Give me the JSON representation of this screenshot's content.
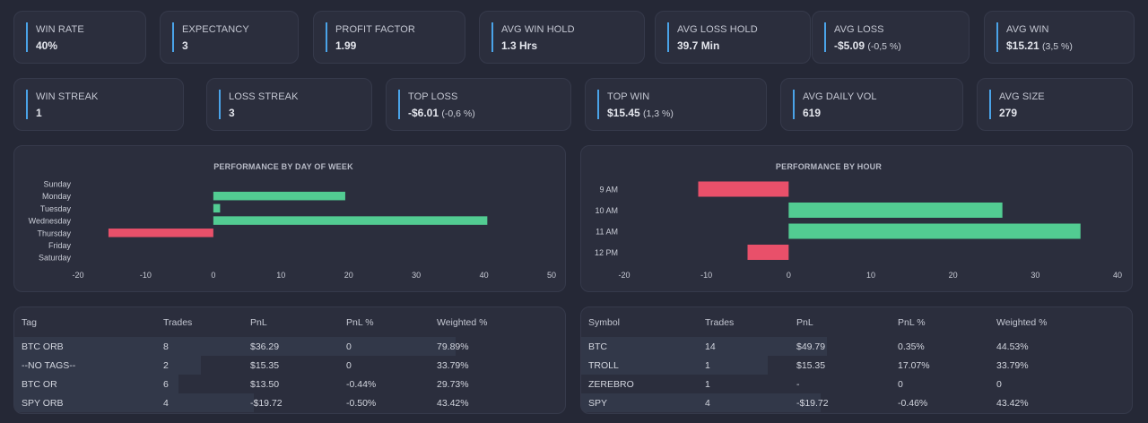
{
  "stats_row1": [
    {
      "label": "WIN RATE",
      "value": "40%",
      "sub": ""
    },
    {
      "label": "EXPECTANCY",
      "value": "3",
      "sub": ""
    },
    {
      "label": "PROFIT FACTOR",
      "value": "1.99",
      "sub": ""
    },
    {
      "label": "AVG WIN HOLD",
      "value": "1.3 Hrs",
      "sub": ""
    },
    {
      "label": "AVG LOSS HOLD",
      "value": "39.7 Min",
      "sub": ""
    },
    {
      "label": "AVG LOSS",
      "value": "-$5.09",
      "sub": "(-0,5 %)"
    },
    {
      "label": "AVG WIN",
      "value": "$15.21",
      "sub": "(3,5 %)"
    }
  ],
  "stats_row2": [
    {
      "label": "WIN STREAK",
      "value": "1",
      "sub": ""
    },
    {
      "label": "LOSS STREAK",
      "value": "3",
      "sub": ""
    },
    {
      "label": "TOP LOSS",
      "value": "-$6.01",
      "sub": "(-0,6 %)"
    },
    {
      "label": "TOP WIN",
      "value": "$15.45",
      "sub": "(1,3 %)"
    },
    {
      "label": "AVG DAILY VOL",
      "value": "619",
      "sub": ""
    },
    {
      "label": "AVG SIZE",
      "value": "279",
      "sub": ""
    }
  ],
  "colors": {
    "positive": "#52cc92",
    "negative": "#e9506a",
    "accent": "#4aa3e8"
  },
  "chart_data": [
    {
      "type": "bar",
      "orientation": "horizontal",
      "title": "PERFORMANCE BY DAY OF WEEK",
      "categories": [
        "Sunday",
        "Monday",
        "Tuesday",
        "Wednesday",
        "Thursday",
        "Friday",
        "Saturday"
      ],
      "values": [
        0,
        19.5,
        1,
        40.5,
        -15.5,
        0,
        0
      ],
      "xlim": [
        -20,
        50
      ],
      "xticks": [
        -20,
        -10,
        0,
        10,
        20,
        30,
        40,
        50
      ],
      "xtick_labels": [
        "-20",
        "-10",
        "0",
        "10",
        "20",
        "30",
        "40",
        "50"
      ],
      "grid": false
    },
    {
      "type": "bar",
      "orientation": "horizontal",
      "title": "PERFORMANCE BY HOUR",
      "categories": [
        "9 AM",
        "10 AM",
        "11 AM",
        "12 PM"
      ],
      "values": [
        -11,
        26,
        35.5,
        -5
      ],
      "xlim": [
        -20,
        40
      ],
      "xticks": [
        -20,
        -10,
        0,
        10,
        20,
        30,
        40
      ],
      "xtick_labels": [
        "-20",
        "-10",
        "0",
        "10",
        "20",
        "30",
        "40"
      ],
      "grid": false
    }
  ],
  "tag_table": {
    "headers": [
      "Tag",
      "Trades",
      "PnL",
      "PnL %",
      "Weighted %"
    ],
    "rows": [
      {
        "cells": [
          "BTC ORB",
          "8",
          "$36.29",
          "0",
          "79.89%"
        ],
        "weight": 79.89
      },
      {
        "cells": [
          "--NO TAGS--",
          "2",
          "$15.35",
          "0",
          "33.79%"
        ],
        "weight": 33.79
      },
      {
        "cells": [
          "BTC OR",
          "6",
          "$13.50",
          "-0.44%",
          "29.73%"
        ],
        "weight": 29.73
      },
      {
        "cells": [
          "SPY ORB",
          "4",
          "-$19.72",
          "-0.50%",
          "43.42%"
        ],
        "weight": 43.42
      }
    ]
  },
  "symbol_table": {
    "headers": [
      "Symbol",
      "Trades",
      "PnL",
      "PnL %",
      "Weighted %"
    ],
    "rows": [
      {
        "cells": [
          "BTC",
          "14",
          "$49.79",
          "0.35%",
          "44.53%"
        ],
        "weight": 44.53
      },
      {
        "cells": [
          "TROLL",
          "1",
          "$15.35",
          "17.07%",
          "33.79%"
        ],
        "weight": 33.79
      },
      {
        "cells": [
          "ZEREBRO",
          "1",
          "-",
          "0",
          "0"
        ],
        "weight": 0
      },
      {
        "cells": [
          "SPY",
          "4",
          "-$19.72",
          "-0.46%",
          "43.42%"
        ],
        "weight": 43.42
      }
    ]
  }
}
